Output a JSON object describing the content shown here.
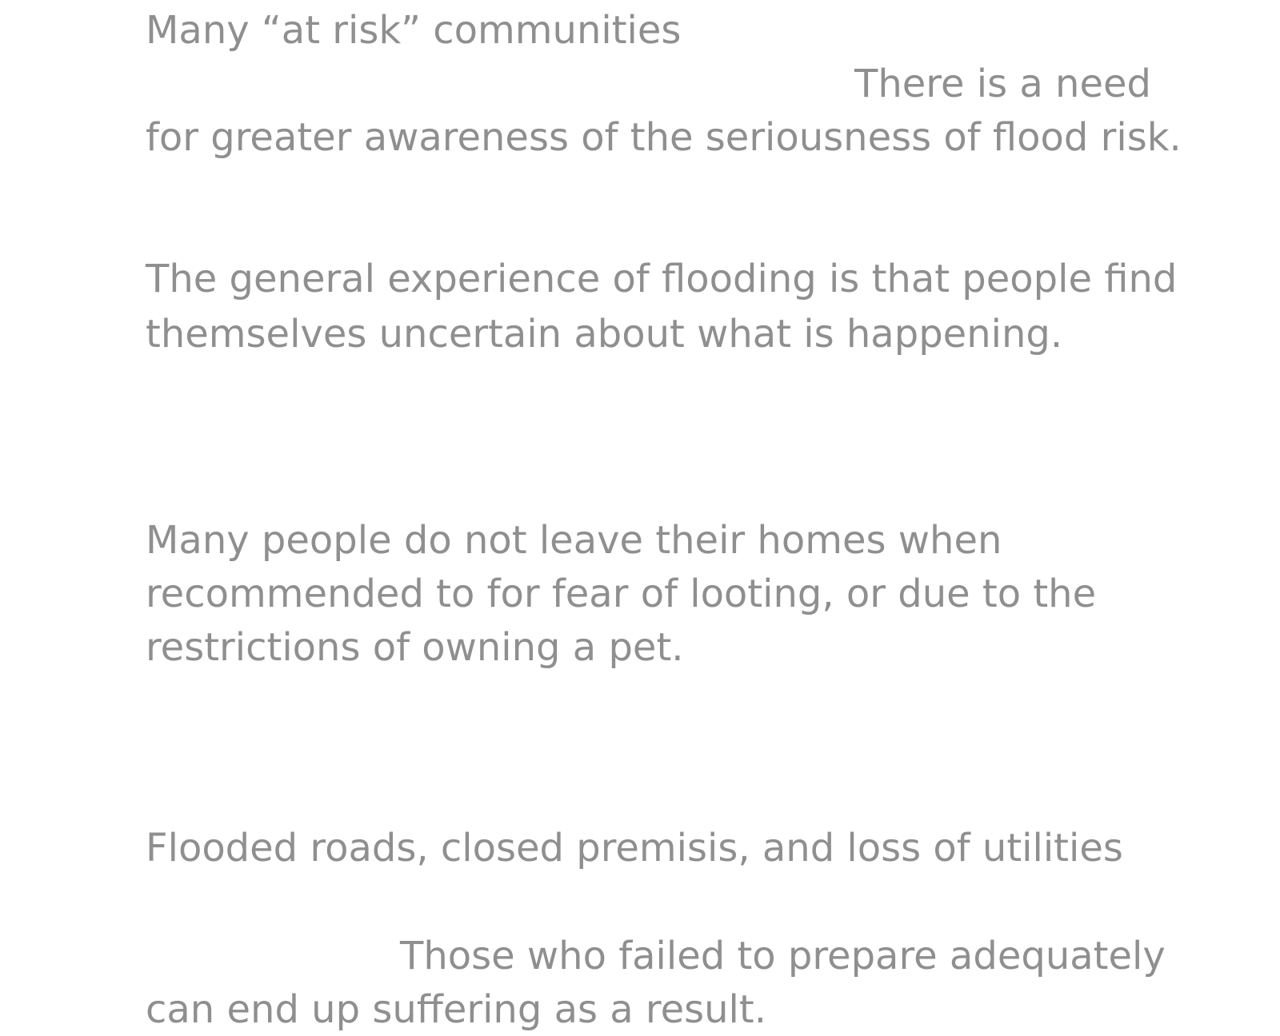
{
  "blocks": [
    {
      "lines": [
        "Many “at risk” communities",
        "There is a need",
        "for greater awareness of the seriousness of flood risk."
      ]
    },
    {
      "lines": [
        "The general experience of flooding is that people find",
        "themselves uncertain about what is happening."
      ]
    },
    {
      "lines": [
        "Many people do not leave their homes when",
        "recommended to for fear of looting, or due to the",
        "restrictions of owning a pet."
      ]
    },
    {
      "lines": [
        "Flooded roads, closed premisis, and loss of utilities",
        "Those who failed to prepare adequately",
        "can end up suffering as a result."
      ]
    }
  ]
}
